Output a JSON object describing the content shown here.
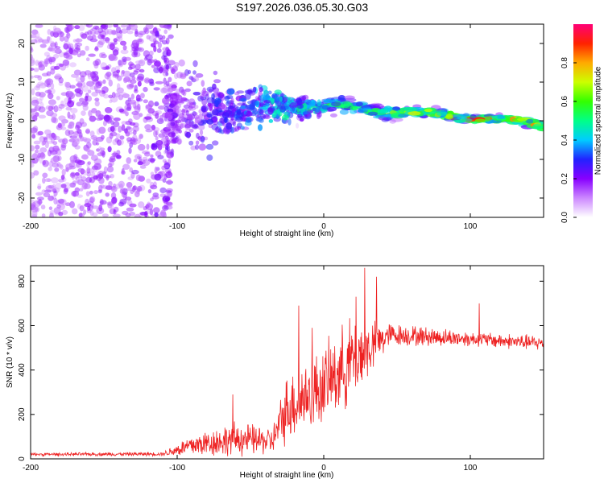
{
  "title": "S197.2026.036.05.30.G03",
  "chart_data": [
    {
      "type": "heatmap",
      "name": "spectrogram",
      "xlabel": "Height of straight line (km)",
      "ylabel": "Frequency (Hz)",
      "xlim": [
        -200,
        150
      ],
      "ylim": [
        -25,
        25
      ],
      "xticks": [
        -200,
        -100,
        0,
        100
      ],
      "yticks": [
        -20,
        -10,
        0,
        10,
        20
      ],
      "colorbar": {
        "label": "Normalized spectral amplitude",
        "range": [
          0,
          1
        ],
        "ticks": [
          "0.0",
          "0.2",
          "0.4",
          "0.6",
          "0.8"
        ],
        "colors": [
          "#ffffff",
          "#cc88ff",
          "#8800ff",
          "#2222ff",
          "#00ccff",
          "#00ff88",
          "#33ff00",
          "#ccff00",
          "#ffaa00",
          "#ff2200",
          "#ff0077"
        ]
      },
      "description_points": [
        {
          "x": -200,
          "f_center": 0,
          "f_spread": 25,
          "amp": 0.15
        },
        {
          "x": -100,
          "f_center": 2,
          "f_spread": 10,
          "amp": 0.2
        },
        {
          "x": -60,
          "f_center": 3,
          "f_spread": 5,
          "amp": 0.3
        },
        {
          "x": -20,
          "f_center": 4,
          "f_spread": 2.5,
          "amp": 0.45
        },
        {
          "x": 30,
          "f_center": 3,
          "f_spread": 1.5,
          "amp": 0.6
        },
        {
          "x": 60,
          "f_center": 2,
          "f_spread": 1,
          "amp": 0.75
        },
        {
          "x": 100,
          "f_center": 1,
          "f_spread": 0.8,
          "amp": 0.8
        },
        {
          "x": 150,
          "f_center": -1,
          "f_spread": 0.8,
          "amp": 0.85
        }
      ]
    },
    {
      "type": "line",
      "name": "snr",
      "xlabel": "Height of straight line (km)",
      "ylabel": "SNR (10 * v/v)",
      "xlim": [
        -200,
        150
      ],
      "ylim": [
        0,
        870
      ],
      "xticks": [
        -200,
        -100,
        0,
        100
      ],
      "yticks": [
        0,
        200,
        400,
        600,
        800
      ],
      "color": "#ee2222",
      "envelope": [
        {
          "x": -200,
          "mean": 20,
          "noise": 8
        },
        {
          "x": -110,
          "mean": 22,
          "noise": 10
        },
        {
          "x": -90,
          "mean": 60,
          "noise": 60
        },
        {
          "x": -60,
          "mean": 90,
          "noise": 90
        },
        {
          "x": -35,
          "mean": 80,
          "noise": 70
        },
        {
          "x": -25,
          "mean": 230,
          "noise": 180
        },
        {
          "x": 0,
          "mean": 330,
          "noise": 200
        },
        {
          "x": 20,
          "mean": 450,
          "noise": 230
        },
        {
          "x": 45,
          "mean": 560,
          "noise": 60
        },
        {
          "x": 100,
          "mean": 540,
          "noise": 40
        },
        {
          "x": 150,
          "mean": 520,
          "noise": 40
        }
      ],
      "spikes": [
        {
          "x": -62,
          "y": 290
        },
        {
          "x": -17,
          "y": 690
        },
        {
          "x": -8,
          "y": 590
        },
        {
          "x": 22,
          "y": 730
        },
        {
          "x": 28,
          "y": 860
        },
        {
          "x": 36,
          "y": 820
        },
        {
          "x": 106,
          "y": 700
        }
      ]
    }
  ]
}
